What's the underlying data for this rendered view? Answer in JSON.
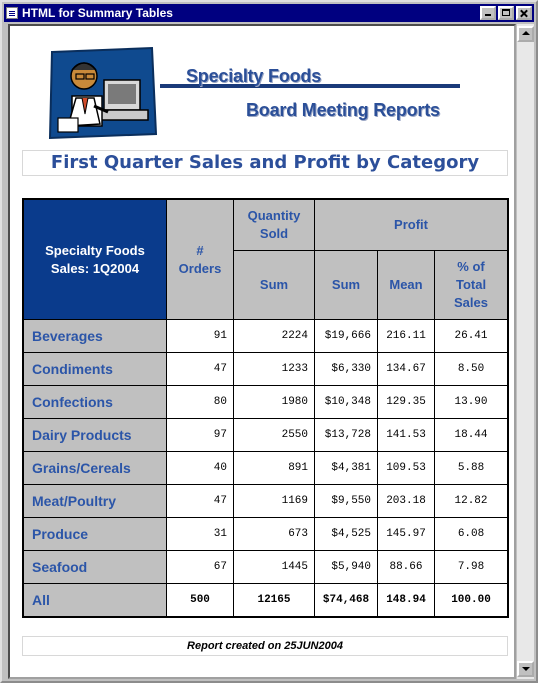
{
  "window": {
    "title": "HTML for Summary Tables"
  },
  "banner": {
    "title": "Specialty Foods",
    "subtitle": "Board Meeting Reports"
  },
  "caption": "First Quarter Sales and Profit by Category",
  "table": {
    "corner_line1": "Specialty Foods",
    "corner_line2": "Sales: 1Q2004",
    "col_orders": "# Orders",
    "col_quantity": "Quantity Sold",
    "col_profit": "Profit",
    "sum": "Sum",
    "mean": "Mean",
    "pct": "% of Total Sales",
    "rows": [
      {
        "category": "Beverages",
        "orders": "91",
        "qty_sum": "2224",
        "profit_sum": "$19,666",
        "profit_mean": "216.11",
        "pct": "26.41"
      },
      {
        "category": "Condiments",
        "orders": "47",
        "qty_sum": "1233",
        "profit_sum": "$6,330",
        "profit_mean": "134.67",
        "pct": "8.50"
      },
      {
        "category": "Confections",
        "orders": "80",
        "qty_sum": "1980",
        "profit_sum": "$10,348",
        "profit_mean": "129.35",
        "pct": "13.90"
      },
      {
        "category": "Dairy Products",
        "orders": "97",
        "qty_sum": "2550",
        "profit_sum": "$13,728",
        "profit_mean": "141.53",
        "pct": "18.44"
      },
      {
        "category": "Grains/Cereals",
        "orders": "40",
        "qty_sum": "891",
        "profit_sum": "$4,381",
        "profit_mean": "109.53",
        "pct": "5.88"
      },
      {
        "category": "Meat/Poultry",
        "orders": "47",
        "qty_sum": "1169",
        "profit_sum": "$9,550",
        "profit_mean": "203.18",
        "pct": "12.82"
      },
      {
        "category": "Produce",
        "orders": "31",
        "qty_sum": "673",
        "profit_sum": "$4,525",
        "profit_mean": "145.97",
        "pct": "6.08"
      },
      {
        "category": "Seafood",
        "orders": "67",
        "qty_sum": "1445",
        "profit_sum": "$5,940",
        "profit_mean": "88.66",
        "pct": "7.98"
      }
    ],
    "total": {
      "category": "All",
      "orders": "500",
      "qty_sum": "12165",
      "profit_sum": "$74,468",
      "profit_mean": "148.94",
      "pct": "100.00"
    }
  },
  "footer": "Report created on 25JUN2004",
  "colors": {
    "title_bar": "#000080",
    "header_blue": "#0a3b8c",
    "accent_text": "#2b55a8",
    "header_gray": "#c0c0c0"
  },
  "icons": {
    "logo": "computer-user-illustration"
  }
}
